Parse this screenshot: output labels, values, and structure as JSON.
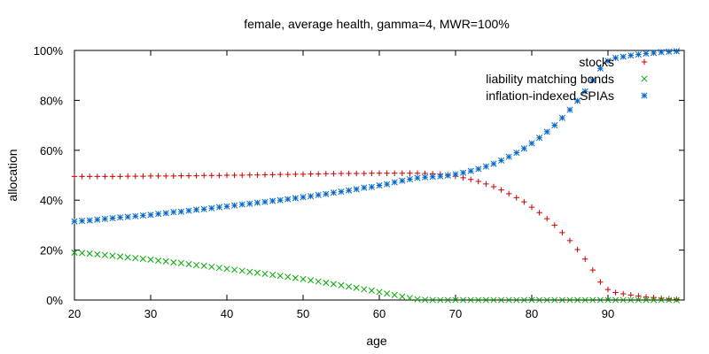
{
  "chart_data": {
    "type": "scatter",
    "title": "female, average health, gamma=4, MWR=100%",
    "xlabel": "age",
    "ylabel": "allocation",
    "xlim": [
      20,
      100
    ],
    "ylim": [
      0,
      100
    ],
    "x_ticks": [
      "20",
      "30",
      "40",
      "50",
      "60",
      "70",
      "80",
      "90"
    ],
    "y_ticks": [
      "0%",
      "20%",
      "40%",
      "60%",
      "80%",
      "100%"
    ],
    "grid": false,
    "legend_position": "top-right",
    "x": [
      20,
      21,
      22,
      23,
      24,
      25,
      26,
      27,
      28,
      29,
      30,
      31,
      32,
      33,
      34,
      35,
      36,
      37,
      38,
      39,
      40,
      41,
      42,
      43,
      44,
      45,
      46,
      47,
      48,
      49,
      50,
      51,
      52,
      53,
      54,
      55,
      56,
      57,
      58,
      59,
      60,
      61,
      62,
      63,
      64,
      65,
      66,
      67,
      68,
      69,
      70,
      71,
      72,
      73,
      74,
      75,
      76,
      77,
      78,
      79,
      80,
      81,
      82,
      83,
      84,
      85,
      86,
      87,
      88,
      89,
      90,
      91,
      92,
      93,
      94,
      95,
      96,
      97,
      98,
      99
    ],
    "series": [
      {
        "name": "stocks",
        "marker": "plus",
        "color": "#cc0000",
        "values": [
          49.5,
          49.5,
          49.5,
          49.5,
          49.5,
          49.5,
          49.5,
          49.6,
          49.6,
          49.6,
          49.7,
          49.7,
          49.7,
          49.7,
          49.8,
          49.8,
          49.8,
          49.9,
          49.9,
          49.9,
          50.0,
          50.0,
          50.0,
          50.1,
          50.1,
          50.2,
          50.2,
          50.3,
          50.3,
          50.4,
          50.4,
          50.5,
          50.5,
          50.6,
          50.6,
          50.7,
          50.7,
          50.7,
          50.7,
          50.8,
          50.8,
          50.8,
          50.8,
          50.8,
          50.8,
          50.8,
          50.7,
          50.6,
          50.4,
          50.1,
          49.6,
          49.0,
          48.3,
          47.5,
          46.5,
          45.4,
          44.1,
          42.6,
          41.0,
          39.3,
          37.2,
          35.0,
          32.6,
          30.0,
          27.0,
          23.8,
          20.2,
          16.4,
          12.0,
          7.2,
          4.2,
          3.0,
          2.5,
          2.0,
          1.6,
          1.2,
          1.0,
          0.7,
          0.5,
          0.3
        ]
      },
      {
        "name": "liability matching bonds",
        "marker": "cross",
        "color": "#00aa00",
        "values": [
          19.0,
          18.8,
          18.6,
          18.3,
          18.0,
          17.7,
          17.4,
          17.1,
          16.8,
          16.5,
          16.2,
          15.8,
          15.5,
          15.1,
          14.8,
          14.4,
          14.0,
          13.7,
          13.3,
          12.9,
          12.5,
          12.1,
          11.7,
          11.3,
          10.9,
          10.5,
          10.1,
          9.7,
          9.3,
          8.8,
          8.4,
          7.9,
          7.4,
          6.9,
          6.4,
          5.9,
          5.4,
          4.9,
          4.3,
          3.8,
          3.2,
          2.6,
          2.0,
          1.4,
          0.8,
          0.3,
          0.1,
          0.0,
          0.0,
          0.0,
          0.0,
          0.0,
          0.0,
          0.0,
          0.0,
          0.0,
          0.0,
          0.0,
          0.0,
          0.0,
          0.0,
          0.0,
          0.0,
          0.0,
          0.0,
          0.0,
          0.0,
          0.0,
          0.0,
          0.0,
          0.0,
          0.0,
          0.0,
          0.0,
          0.0,
          0.0,
          0.0,
          0.0,
          0.0,
          0.0
        ]
      },
      {
        "name": "inflation-indexed SPIAs",
        "marker": "star",
        "color": "#0066cc",
        "values": [
          31.5,
          31.7,
          31.9,
          32.2,
          32.5,
          32.8,
          33.1,
          33.3,
          33.6,
          33.9,
          34.1,
          34.5,
          34.8,
          35.2,
          35.4,
          35.8,
          36.2,
          36.4,
          36.8,
          37.2,
          37.5,
          37.9,
          38.3,
          38.6,
          39.0,
          39.3,
          39.7,
          40.0,
          40.4,
          40.8,
          41.2,
          41.6,
          42.1,
          42.5,
          43.0,
          43.4,
          43.9,
          44.4,
          45.0,
          45.3,
          45.9,
          46.4,
          47.2,
          47.8,
          48.4,
          48.9,
          49.2,
          49.4,
          49.6,
          49.9,
          50.4,
          51.0,
          51.7,
          52.5,
          53.5,
          54.6,
          55.9,
          57.4,
          59.0,
          60.7,
          62.8,
          65.0,
          67.4,
          70.0,
          73.0,
          76.2,
          79.8,
          83.6,
          88.0,
          92.8,
          95.8,
          97.0,
          97.5,
          98.0,
          98.4,
          98.8,
          99.0,
          99.3,
          99.5,
          99.7
        ]
      }
    ]
  }
}
